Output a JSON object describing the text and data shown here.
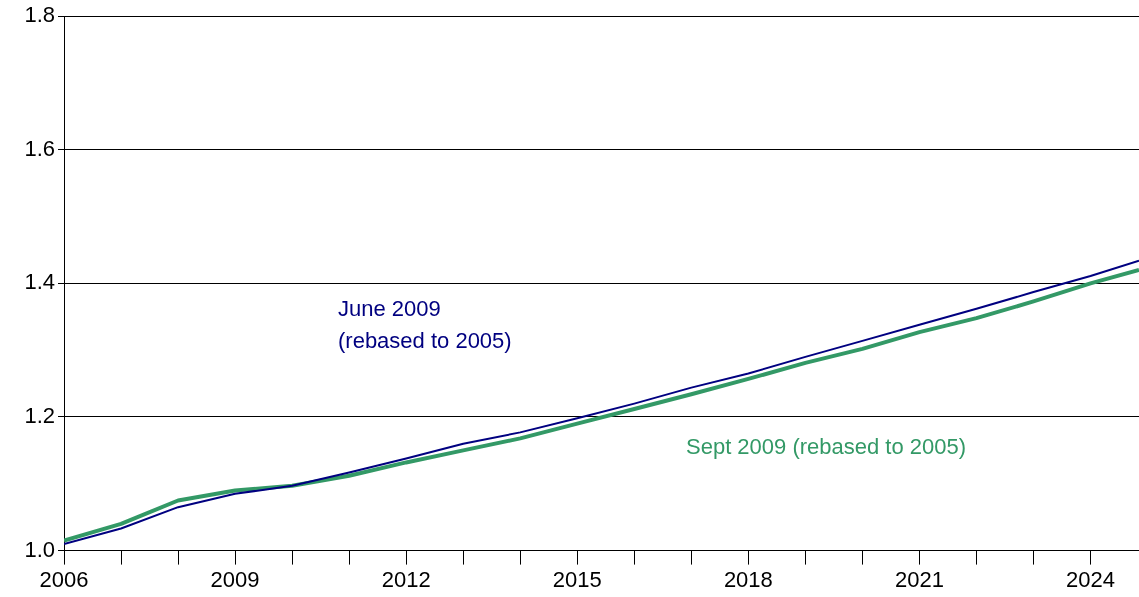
{
  "chart_data": {
    "type": "line",
    "x": [
      2006,
      2007,
      2008,
      2009,
      2010,
      2011,
      2012,
      2013,
      2014,
      2015,
      2016,
      2017,
      2018,
      2019,
      2020,
      2021,
      2022,
      2023,
      2024,
      2024.85
    ],
    "series": [
      {
        "name": "June 2009\n(rebased to 2005)",
        "color": "#000080",
        "values": [
          1.01,
          1.033,
          1.065,
          1.085,
          1.097,
          1.117,
          1.138,
          1.16,
          1.177,
          1.198,
          1.22,
          1.244,
          1.265,
          1.29,
          1.314,
          1.338,
          1.362,
          1.387,
          1.411,
          1.434
        ]
      },
      {
        "name": "Sept 2009 (rebased to 2005)",
        "color": "#339966",
        "values": [
          1.015,
          1.04,
          1.075,
          1.09,
          1.097,
          1.112,
          1.132,
          1.15,
          1.168,
          1.19,
          1.212,
          1.234,
          1.257,
          1.281,
          1.302,
          1.327,
          1.348,
          1.373,
          1.4,
          1.42
        ]
      }
    ],
    "xlim": [
      2006,
      2024.85
    ],
    "xticks": [
      2006,
      {
        "value": 2007,
        "label": null
      },
      {
        "value": 2008,
        "label": null
      },
      2009,
      {
        "value": 2010,
        "label": null
      },
      {
        "value": 2011,
        "label": null
      },
      2012,
      {
        "value": 2013,
        "label": null
      },
      {
        "value": 2014,
        "label": null
      },
      2015,
      {
        "value": 2016,
        "label": null
      },
      {
        "value": 2017,
        "label": null
      },
      2018,
      {
        "value": 2019,
        "label": null
      },
      {
        "value": 2020,
        "label": null
      },
      2021,
      {
        "value": 2022,
        "label": null
      },
      {
        "value": 2023,
        "label": null
      },
      2024
    ],
    "ylim": [
      1.0,
      1.8
    ],
    "yticks": [
      {
        "value": 1.0,
        "label": "1.0"
      },
      {
        "value": 1.2,
        "label": "1.2"
      },
      {
        "value": 1.4,
        "label": "1.4"
      },
      {
        "value": 1.6,
        "label": "1.6"
      },
      {
        "value": 1.8,
        "label": "1.8"
      }
    ],
    "grid": "y",
    "legend": false,
    "marker": "none",
    "line_style": "solid"
  }
}
